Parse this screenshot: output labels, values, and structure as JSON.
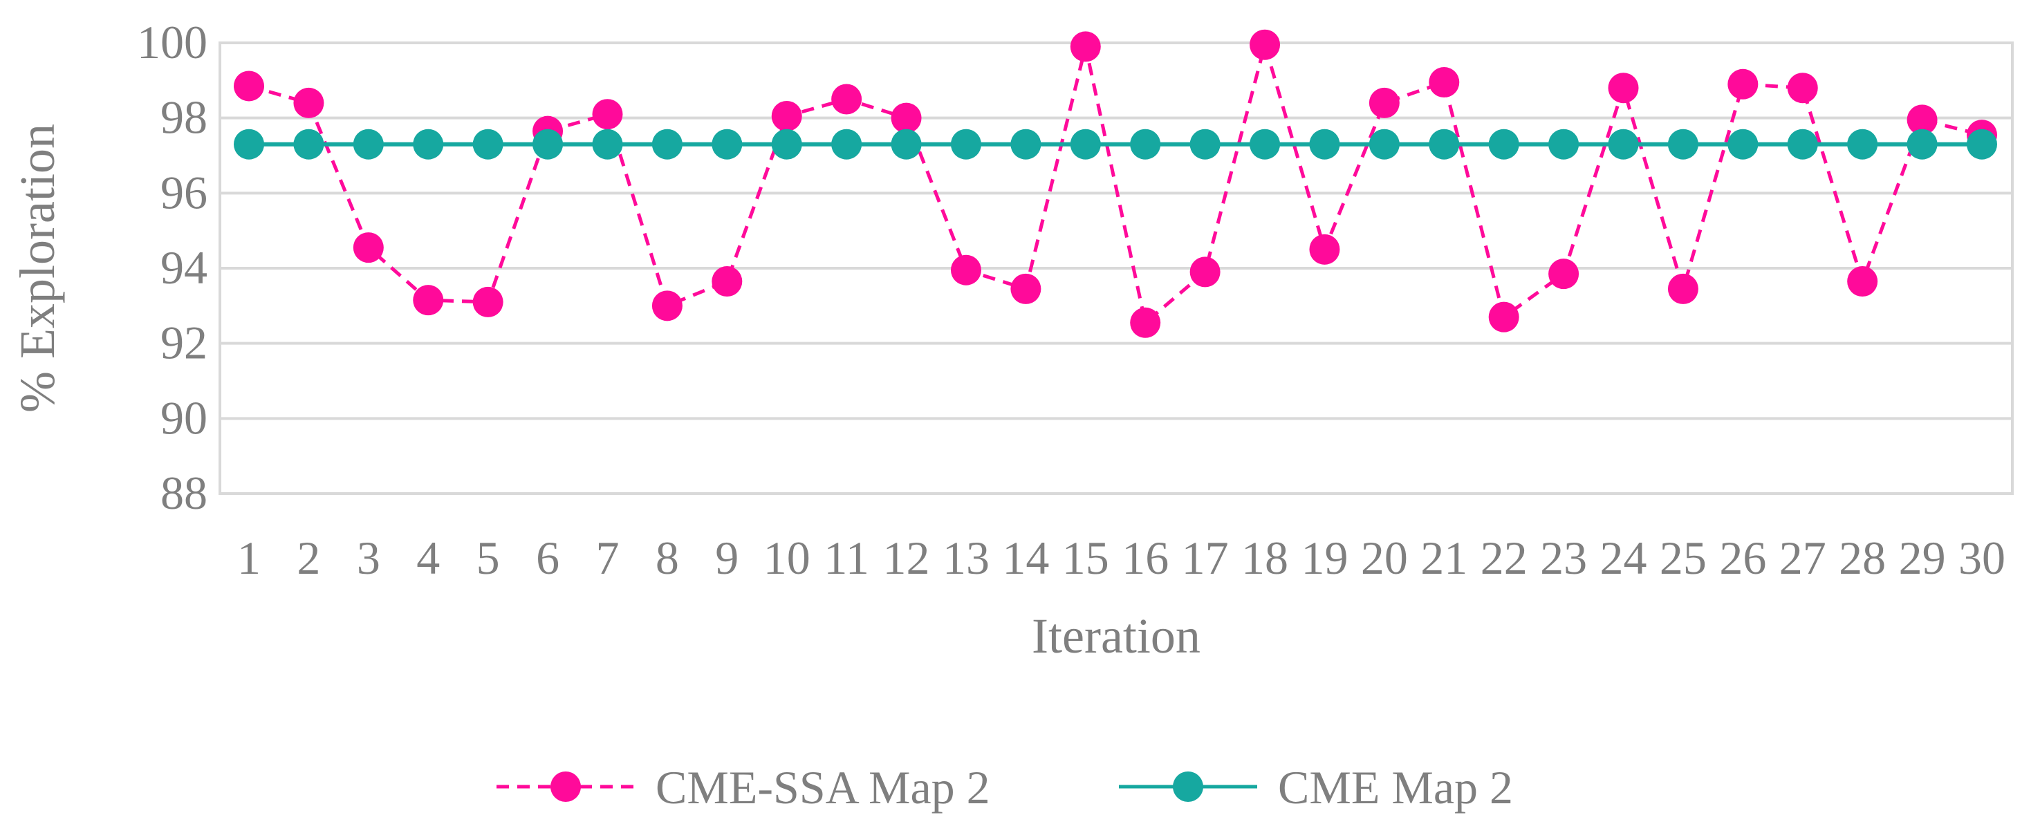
{
  "chart_data": {
    "type": "line",
    "title": "",
    "xlabel": "Iteration",
    "ylabel": "% Exploration",
    "ylim": [
      88,
      100
    ],
    "ytick_step": 2,
    "yticks": [
      "88",
      "90",
      "92",
      "94",
      "96",
      "98",
      "100"
    ],
    "categories": [
      "1",
      "2",
      "3",
      "4",
      "5",
      "6",
      "7",
      "8",
      "9",
      "10",
      "11",
      "12",
      "13",
      "14",
      "15",
      "16",
      "17",
      "18",
      "19",
      "20",
      "21",
      "22",
      "23",
      "24",
      "25",
      "26",
      "27",
      "28",
      "29",
      "30"
    ],
    "grid": "horizontal",
    "legend_position": "bottom",
    "series": [
      {
        "name": "CME-SSA Map 2",
        "color": "#ff0a9a",
        "line_style": "dashed",
        "marker": "circle",
        "values": [
          98.85,
          98.4,
          94.55,
          93.15,
          93.1,
          97.65,
          98.1,
          93.0,
          93.65,
          98.05,
          98.5,
          98.0,
          93.95,
          93.45,
          99.9,
          92.55,
          93.9,
          99.95,
          94.5,
          98.4,
          98.95,
          92.7,
          93.85,
          98.8,
          93.45,
          98.9,
          98.8,
          93.65,
          97.95,
          97.55
        ]
      },
      {
        "name": "CME Map 2",
        "color": "#16a8a0",
        "line_style": "solid",
        "marker": "circle",
        "values": [
          97.3,
          97.3,
          97.3,
          97.3,
          97.3,
          97.3,
          97.3,
          97.3,
          97.3,
          97.3,
          97.3,
          97.3,
          97.3,
          97.3,
          97.3,
          97.3,
          97.3,
          97.3,
          97.3,
          97.3,
          97.3,
          97.3,
          97.3,
          97.3,
          97.3,
          97.3,
          97.3,
          97.3,
          97.3,
          97.3
        ]
      }
    ]
  }
}
